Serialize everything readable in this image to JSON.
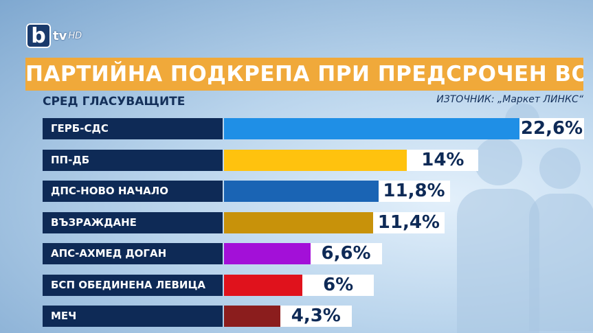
{
  "channel": {
    "logo_letter": "b",
    "logo_text": "tv",
    "logo_suffix": "HD"
  },
  "header": {
    "title": "ПАРТИЙНА ПОДКРЕПА ПРИ ПРЕДСРОЧЕН ВОТ",
    "subtitle": "СРЕД ГЛАСУВАЩИТЕ",
    "source": "ИЗТОЧНИК: „Маркет ЛИНКС“"
  },
  "colors": {
    "title_bg": "#f0a93a",
    "label_bg": "#0e2a56"
  },
  "chart_data": {
    "type": "bar",
    "orientation": "horizontal",
    "title": "ПАРТИЙНА ПОДКРЕПА ПРИ ПРЕДСРОЧЕН ВОТ",
    "subtitle": "СРЕД ГЛАСУВАЩИТЕ",
    "categories": [
      "ГЕРБ-СДС",
      "ПП-ДБ",
      "ДПС-НОВО НАЧАЛО",
      "ВЪЗРАЖДАНЕ",
      "АПС-АХМЕД ДОГАН",
      "БСП ОБЕДИНЕНА ЛЕВИЦА",
      "МЕЧ"
    ],
    "values": [
      22.6,
      14,
      11.8,
      11.4,
      6.6,
      6,
      4.3
    ],
    "value_labels": [
      "22,6%",
      "14%",
      "11,8%",
      "11,4%",
      "6,6%",
      "6%",
      "4,3%"
    ],
    "colors": [
      "#1f8fe6",
      "#ffc20e",
      "#1a64b4",
      "#c8920a",
      "#a310d8",
      "#e0121c",
      "#8b1d1d"
    ],
    "unit": "%"
  }
}
